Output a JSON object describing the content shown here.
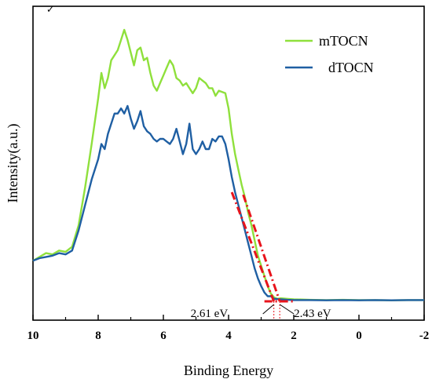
{
  "chart_data": {
    "type": "line",
    "title": "",
    "xlabel": "Binding Energy",
    "ylabel": "Intensity(a.u.)",
    "xlim": [
      10,
      -2
    ],
    "ylim": [
      0,
      1.1
    ],
    "x_reversed": true,
    "xticks": [
      "10",
      "8",
      "6",
      "4",
      "2",
      "0",
      "-2"
    ],
    "xtick_values": [
      10,
      8,
      6,
      4,
      2,
      0,
      -2
    ],
    "grid": false,
    "legend_position": "top-right",
    "series": [
      {
        "name": "mTOCN",
        "color": "#8fe03c",
        "points": [
          [
            10,
            0.16
          ],
          [
            9.8,
            0.175
          ],
          [
            9.6,
            0.19
          ],
          [
            9.4,
            0.185
          ],
          [
            9.2,
            0.2
          ],
          [
            9.0,
            0.195
          ],
          [
            8.8,
            0.215
          ],
          [
            8.6,
            0.3
          ],
          [
            8.4,
            0.45
          ],
          [
            8.2,
            0.62
          ],
          [
            8.0,
            0.8
          ],
          [
            7.9,
            0.9
          ],
          [
            7.8,
            0.84
          ],
          [
            7.7,
            0.88
          ],
          [
            7.6,
            0.95
          ],
          [
            7.5,
            0.97
          ],
          [
            7.4,
            0.99
          ],
          [
            7.3,
            1.03
          ],
          [
            7.2,
            1.07
          ],
          [
            7.1,
            1.03
          ],
          [
            7.0,
            0.98
          ],
          [
            6.9,
            0.93
          ],
          [
            6.8,
            0.99
          ],
          [
            6.7,
            1.0
          ],
          [
            6.6,
            0.95
          ],
          [
            6.5,
            0.96
          ],
          [
            6.4,
            0.9
          ],
          [
            6.3,
            0.85
          ],
          [
            6.2,
            0.83
          ],
          [
            6.1,
            0.86
          ],
          [
            6.0,
            0.89
          ],
          [
            5.9,
            0.92
          ],
          [
            5.8,
            0.95
          ],
          [
            5.7,
            0.93
          ],
          [
            5.6,
            0.88
          ],
          [
            5.5,
            0.87
          ],
          [
            5.4,
            0.85
          ],
          [
            5.3,
            0.86
          ],
          [
            5.2,
            0.84
          ],
          [
            5.1,
            0.82
          ],
          [
            5.0,
            0.84
          ],
          [
            4.9,
            0.88
          ],
          [
            4.8,
            0.87
          ],
          [
            4.7,
            0.86
          ],
          [
            4.6,
            0.84
          ],
          [
            4.5,
            0.84
          ],
          [
            4.4,
            0.81
          ],
          [
            4.3,
            0.83
          ],
          [
            4.1,
            0.82
          ],
          [
            4.0,
            0.76
          ],
          [
            3.9,
            0.66
          ],
          [
            3.8,
            0.58
          ],
          [
            3.7,
            0.52
          ],
          [
            3.6,
            0.46
          ],
          [
            3.5,
            0.41
          ],
          [
            3.4,
            0.35
          ],
          [
            3.3,
            0.3
          ],
          [
            3.2,
            0.24
          ],
          [
            3.1,
            0.18
          ],
          [
            3.0,
            0.14
          ],
          [
            2.9,
            0.1
          ],
          [
            2.8,
            0.06
          ],
          [
            2.7,
            0.03
          ],
          [
            2.6,
            0.015
          ],
          [
            2.5,
            0.01
          ],
          [
            2.4,
            0.012
          ],
          [
            2.2,
            0.01
          ],
          [
            2.0,
            0.008
          ],
          [
            1.5,
            0.006
          ],
          [
            1.0,
            0.005
          ],
          [
            0.5,
            0.006
          ],
          [
            0,
            0.005
          ],
          [
            -0.5,
            0.005
          ],
          [
            -1.0,
            0.004
          ],
          [
            -1.5,
            0.005
          ],
          [
            -2,
            0.005
          ]
        ]
      },
      {
        "name": "dTOCN",
        "color": "#1f5fa3",
        "points": [
          [
            10,
            0.16
          ],
          [
            9.8,
            0.17
          ],
          [
            9.6,
            0.175
          ],
          [
            9.4,
            0.18
          ],
          [
            9.2,
            0.19
          ],
          [
            9.0,
            0.185
          ],
          [
            8.8,
            0.2
          ],
          [
            8.6,
            0.28
          ],
          [
            8.4,
            0.38
          ],
          [
            8.2,
            0.48
          ],
          [
            8.0,
            0.56
          ],
          [
            7.9,
            0.62
          ],
          [
            7.8,
            0.6
          ],
          [
            7.7,
            0.66
          ],
          [
            7.6,
            0.7
          ],
          [
            7.5,
            0.74
          ],
          [
            7.4,
            0.74
          ],
          [
            7.3,
            0.76
          ],
          [
            7.2,
            0.74
          ],
          [
            7.1,
            0.77
          ],
          [
            7.0,
            0.72
          ],
          [
            6.9,
            0.68
          ],
          [
            6.8,
            0.71
          ],
          [
            6.7,
            0.75
          ],
          [
            6.6,
            0.69
          ],
          [
            6.5,
            0.67
          ],
          [
            6.4,
            0.66
          ],
          [
            6.3,
            0.64
          ],
          [
            6.2,
            0.63
          ],
          [
            6.1,
            0.64
          ],
          [
            6.0,
            0.64
          ],
          [
            5.9,
            0.63
          ],
          [
            5.8,
            0.62
          ],
          [
            5.7,
            0.64
          ],
          [
            5.6,
            0.68
          ],
          [
            5.5,
            0.63
          ],
          [
            5.4,
            0.58
          ],
          [
            5.3,
            0.62
          ],
          [
            5.2,
            0.7
          ],
          [
            5.1,
            0.6
          ],
          [
            5.0,
            0.58
          ],
          [
            4.9,
            0.6
          ],
          [
            4.8,
            0.63
          ],
          [
            4.7,
            0.6
          ],
          [
            4.6,
            0.6
          ],
          [
            4.5,
            0.64
          ],
          [
            4.4,
            0.63
          ],
          [
            4.3,
            0.65
          ],
          [
            4.2,
            0.65
          ],
          [
            4.1,
            0.62
          ],
          [
            4.0,
            0.56
          ],
          [
            3.9,
            0.49
          ],
          [
            3.8,
            0.43
          ],
          [
            3.7,
            0.38
          ],
          [
            3.6,
            0.33
          ],
          [
            3.5,
            0.28
          ],
          [
            3.4,
            0.23
          ],
          [
            3.3,
            0.18
          ],
          [
            3.2,
            0.13
          ],
          [
            3.1,
            0.09
          ],
          [
            3.0,
            0.06
          ],
          [
            2.9,
            0.035
          ],
          [
            2.8,
            0.02
          ],
          [
            2.7,
            0.02
          ],
          [
            2.6,
            0.01
          ],
          [
            2.4,
            0.008
          ],
          [
            2.2,
            0.006
          ],
          [
            2.0,
            0.005
          ],
          [
            1.5,
            0.005
          ],
          [
            1.0,
            0.004
          ],
          [
            0.5,
            0.005
          ],
          [
            0,
            0.004
          ],
          [
            -0.5,
            0.005
          ],
          [
            -1.0,
            0.004
          ],
          [
            -1.5,
            0.005
          ],
          [
            -2,
            0.005
          ]
        ]
      }
    ],
    "tangent_lines": [
      {
        "color": "#e8141c",
        "from": [
          3.9,
          0.43
        ],
        "to": [
          2.61,
          0.0
        ]
      },
      {
        "color": "#e8141c",
        "from": [
          3.55,
          0.42
        ],
        "to": [
          2.43,
          0.0
        ]
      },
      {
        "color": "#e8141c",
        "from": [
          2.9,
          0.0
        ],
        "to": [
          2.0,
          0.0
        ]
      }
    ],
    "annotations": [
      {
        "text": "2.61 eV",
        "x": 2.61
      },
      {
        "text": "2.43 eV",
        "x": 2.43
      }
    ]
  }
}
